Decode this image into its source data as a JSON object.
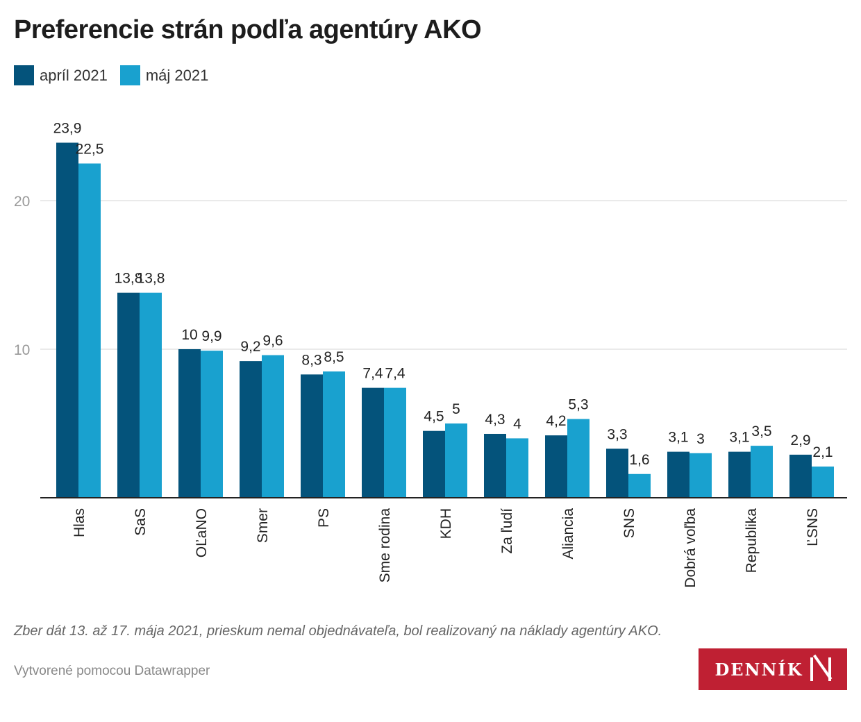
{
  "title": "Preferencie strán podľa agentúry AKO",
  "note": "Zber dát 13. až 17. mája 2021, prieskum nemal objednávateľa, bol realizovaný na náklady agentúry AKO.",
  "credit": "Vytvorené pomocou Datawrapper",
  "logo": "DENNÍK N",
  "colors": {
    "april": "#04537b",
    "maj": "#19a1cf"
  },
  "chart_data": {
    "type": "bar",
    "title": "Preferencie strán podľa agentúry AKO",
    "categories": [
      "Hlas",
      "SaS",
      "OĽaNO",
      "Smer",
      "PS",
      "Sme rodina",
      "KDH",
      "Za ľudí",
      "Aliancia",
      "SNS",
      "Dobrá voľba",
      "Republika",
      "ĽSNS"
    ],
    "series": [
      {
        "name": "apríl 2021",
        "values": [
          23.9,
          13.8,
          10,
          9.2,
          8.3,
          7.4,
          4.5,
          4.3,
          4.2,
          3.3,
          3.1,
          3.1,
          2.9
        ]
      },
      {
        "name": "máj 2021",
        "values": [
          22.5,
          13.8,
          9.9,
          9.6,
          8.5,
          7.4,
          5,
          4,
          5.3,
          1.6,
          3,
          3.5,
          2.1
        ]
      }
    ],
    "yticks": [
      10,
      20
    ],
    "ylim": [
      0,
      25
    ],
    "grid": true,
    "legend": "top-left"
  }
}
